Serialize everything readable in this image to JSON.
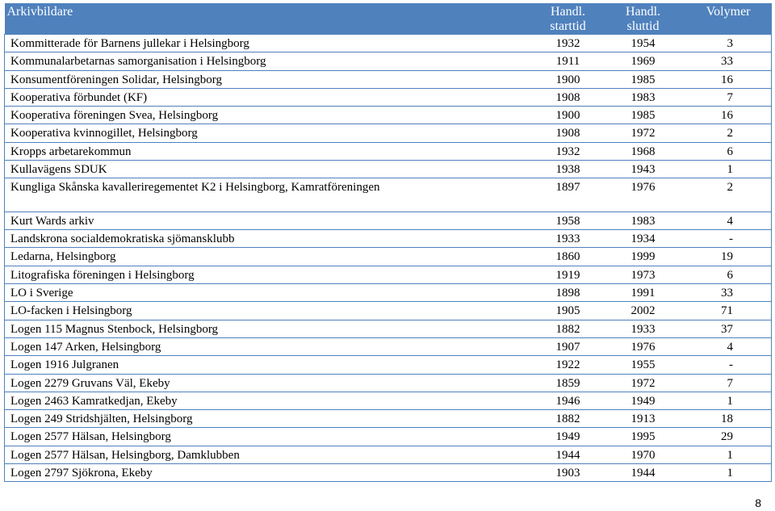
{
  "table": {
    "headers": {
      "name": "Arkivbildare",
      "start": "Handl. starttid",
      "end": "Handl. sluttid",
      "volumes": "Volymer"
    },
    "rows": [
      {
        "name": "Kommitterade för Barnens jullekar i Helsingborg",
        "start": "1932",
        "end": "1954",
        "volumes": "3"
      },
      {
        "name": "Kommunalarbetarnas samorganisation i Helsingborg",
        "start": "1911",
        "end": "1969",
        "volumes": "33"
      },
      {
        "name": "Konsumentföreningen Solidar, Helsingborg",
        "start": "1900",
        "end": "1985",
        "volumes": "16"
      },
      {
        "name": "Kooperativa förbundet (KF)",
        "start": "1908",
        "end": "1983",
        "volumes": "7"
      },
      {
        "name": "Kooperativa föreningen Svea, Helsingborg",
        "start": "1900",
        "end": "1985",
        "volumes": "16"
      },
      {
        "name": "Kooperativa kvinnogillet, Helsingborg",
        "start": "1908",
        "end": "1972",
        "volumes": "2"
      },
      {
        "name": "Kropps arbetarekommun",
        "start": "1932",
        "end": "1968",
        "volumes": "6"
      },
      {
        "name": "Kullavägens SDUK",
        "start": "1938",
        "end": "1943",
        "volumes": "1"
      },
      {
        "name": "Kungliga Skånska kavalleriregementet K2 i Helsingborg, Kamratföreningen",
        "start": "1897",
        "end": "1976",
        "volumes": "2"
      },
      {
        "name": "Kurt Wards arkiv",
        "start": "1958",
        "end": "1983",
        "volumes": "4"
      },
      {
        "name": "Landskrona socialdemokratiska sjömansklubb",
        "start": "1933",
        "end": "1934",
        "volumes": "-"
      },
      {
        "name": "Ledarna, Helsingborg",
        "start": "1860",
        "end": "1999",
        "volumes": "19"
      },
      {
        "name": "Litografiska föreningen i Helsingborg",
        "start": "1919",
        "end": "1973",
        "volumes": "6"
      },
      {
        "name": "LO i Sverige",
        "start": "1898",
        "end": "1991",
        "volumes": "33"
      },
      {
        "name": "LO-facken i Helsingborg",
        "start": "1905",
        "end": "2002",
        "volumes": "71"
      },
      {
        "name": "Logen 115 Magnus Stenbock, Helsingborg",
        "start": "1882",
        "end": "1933",
        "volumes": "37"
      },
      {
        "name": "Logen 147 Arken, Helsingborg",
        "start": "1907",
        "end": "1976",
        "volumes": "4"
      },
      {
        "name": "Logen 1916 Julgranen",
        "start": "1922",
        "end": "1955",
        "volumes": "-"
      },
      {
        "name": "Logen 2279 Gruvans Väl, Ekeby",
        "start": "1859",
        "end": "1972",
        "volumes": "7"
      },
      {
        "name": "Logen 2463 Kamratkedjan, Ekeby",
        "start": "1946",
        "end": "1949",
        "volumes": "1"
      },
      {
        "name": "Logen 249 Stridshjälten, Helsingborg",
        "start": "1882",
        "end": "1913",
        "volumes": "18"
      },
      {
        "name": "Logen 2577 Hälsan, Helsingborg",
        "start": "1949",
        "end": "1995",
        "volumes": "29"
      },
      {
        "name": "Logen 2577 Hälsan, Helsingborg, Damklubben",
        "start": "1944",
        "end": "1970",
        "volumes": "1"
      },
      {
        "name": "Logen 2797 Sjökrona, Ekeby",
        "start": "1903",
        "end": "1944",
        "volumes": "1"
      }
    ]
  },
  "page": {
    "number": "8"
  }
}
